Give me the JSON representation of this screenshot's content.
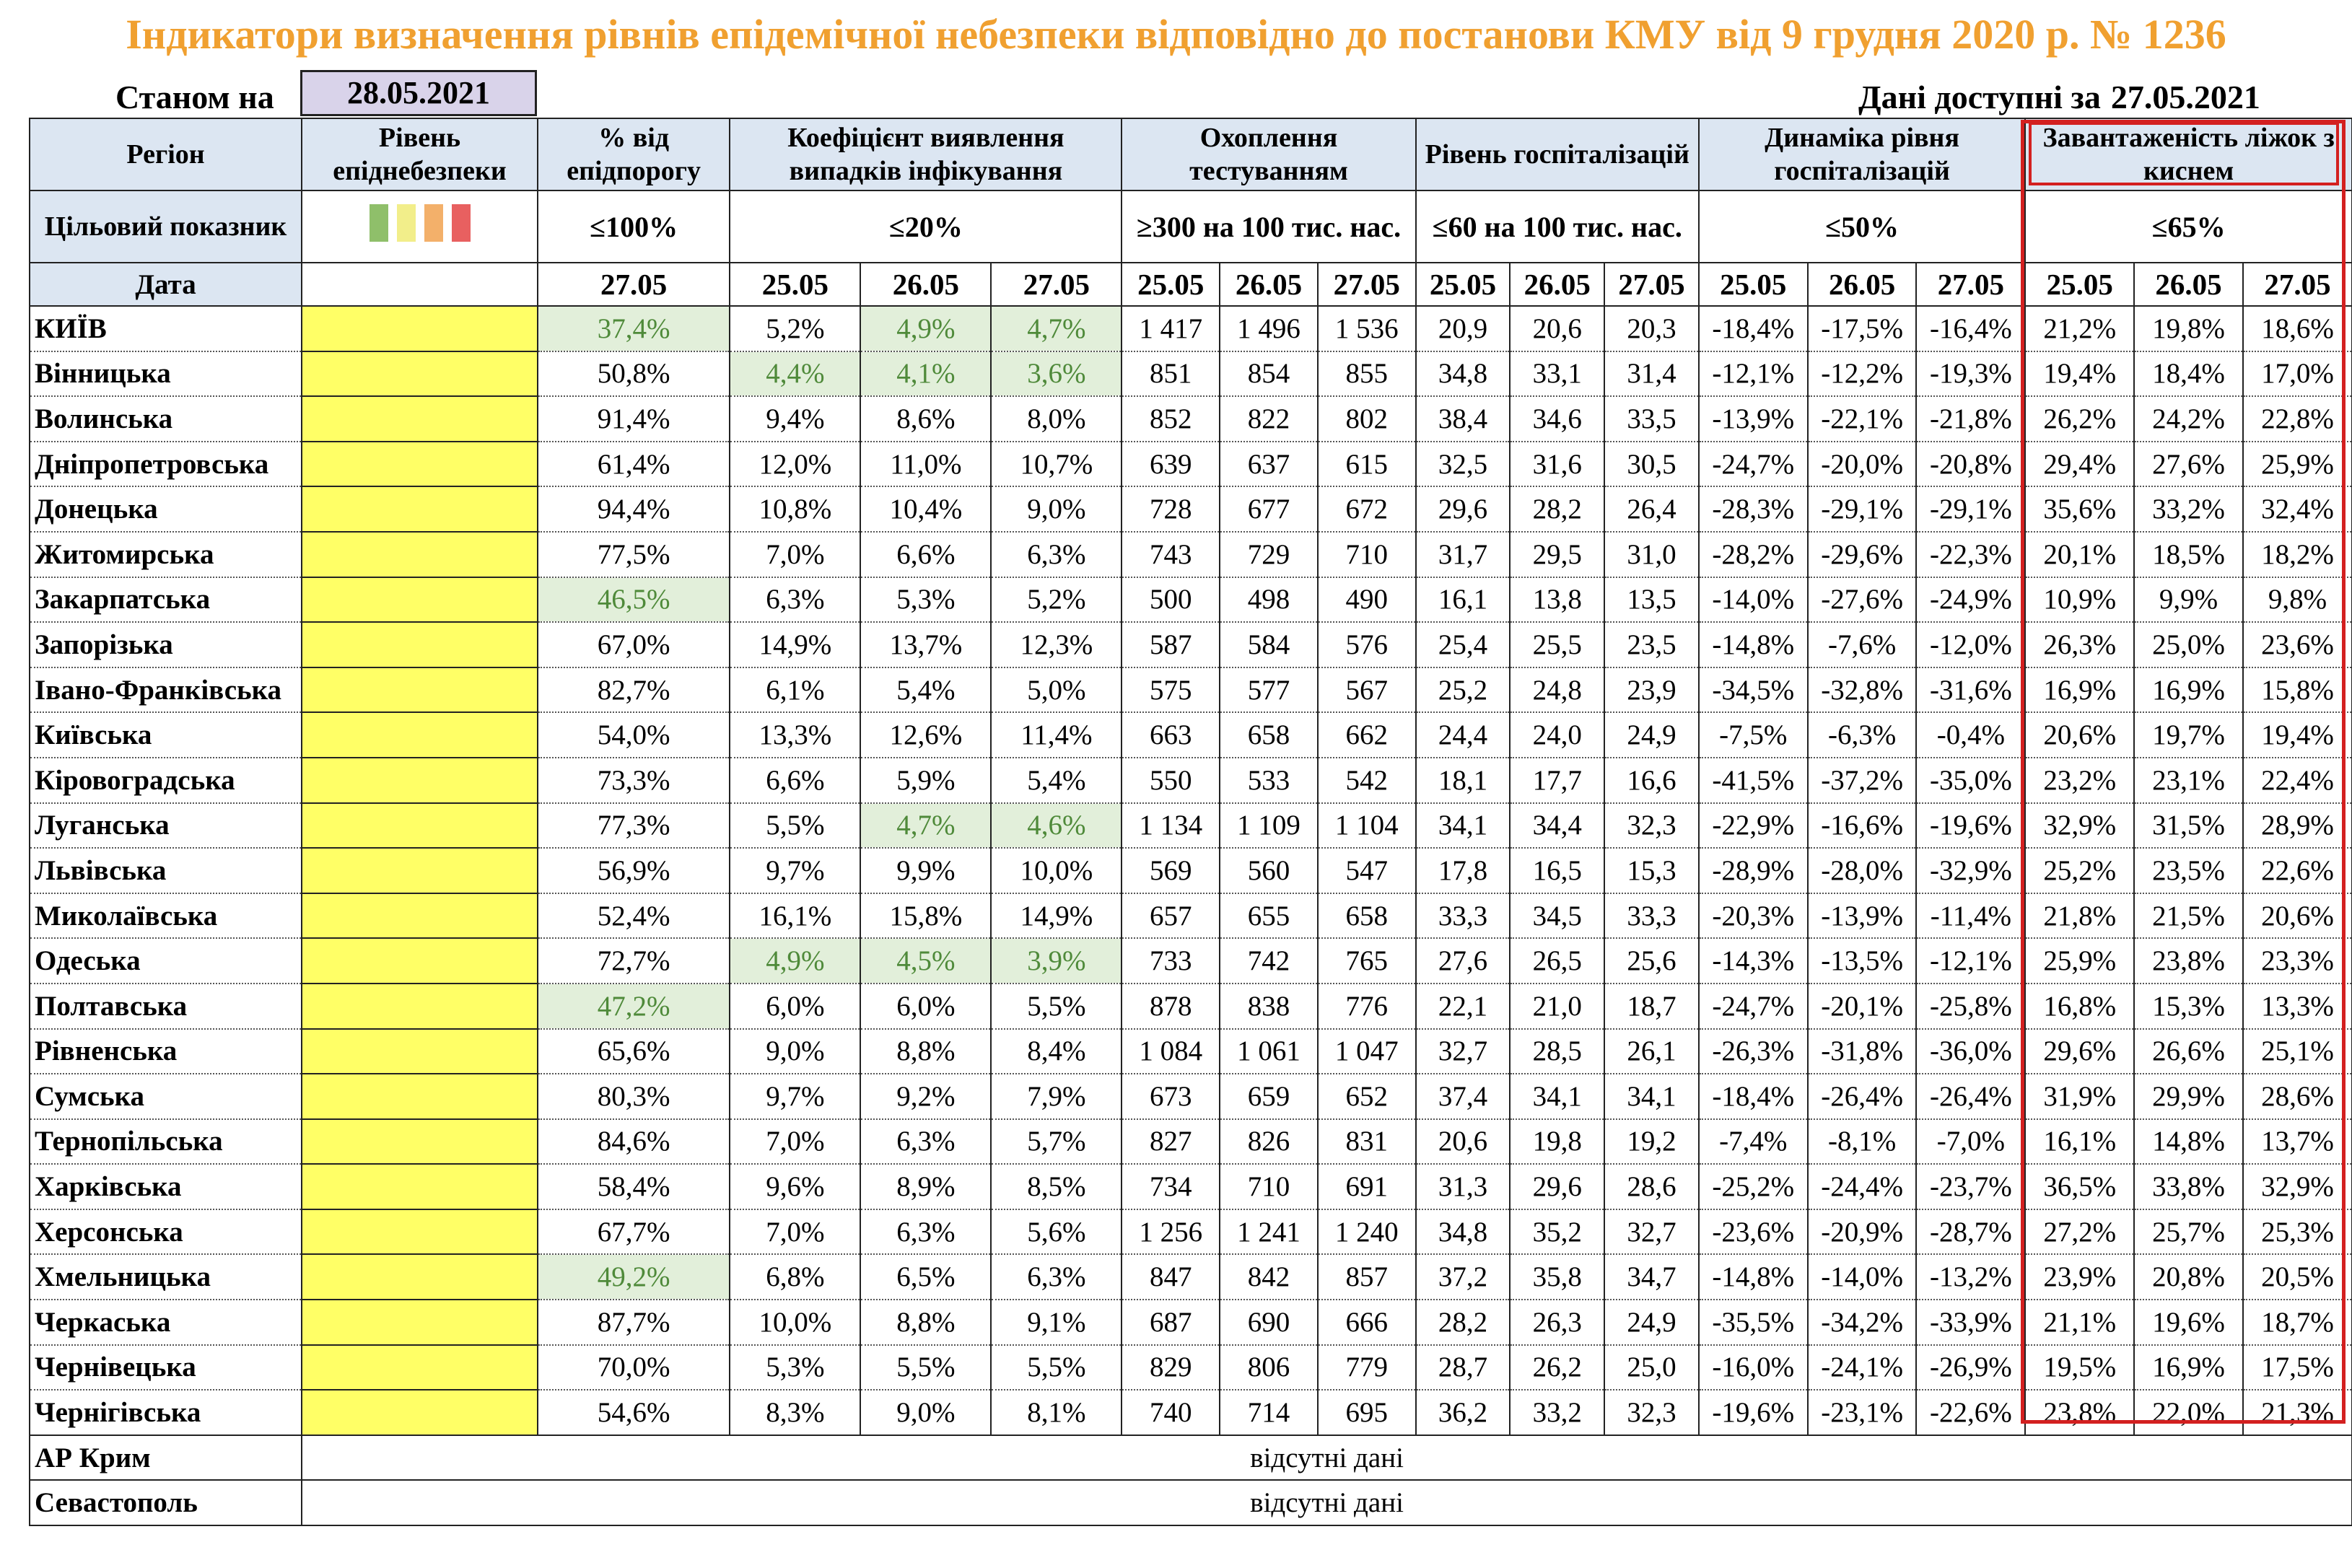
{
  "title": "Індикатори визначення рівнів епідемічної небезпеки відповідно до постанови КМУ від 9 грудня 2020 р. № 1236",
  "status": {
    "label": "Станом на",
    "date": "28.05.2021"
  },
  "available": {
    "label": "Дані доступні за",
    "date": "27.05.2021"
  },
  "colors": {
    "title": "#f0a030",
    "header_bg": "#dce6f2",
    "level_yellow": "#ffff66",
    "highlight_bg": "#e2efda",
    "highlight_text": "#4f8a3a",
    "red_frame": "#d32020"
  },
  "headers": {
    "region": "Регіон",
    "level": "Рівень епіднебезпеки",
    "pct_threshold": "% від епідпорогу",
    "detection": "Коефіцієнт виявлення випадків інфікування",
    "testing": "Охоплення тестуванням",
    "hosp_level": "Рівень госпіталізацій",
    "hosp_dynamics": "Динаміка рівня госпіталізацій",
    "oxygen_beds": "Завантаженість ліжок з киснем"
  },
  "targets": {
    "label": "Цільовий показник",
    "pct_threshold": "≤100%",
    "detection": "≤20%",
    "testing": "≥300 на 100 тис. нас.",
    "hosp_level": "≤60 на 100 тис. нас.",
    "hosp_dynamics": "≤50%",
    "oxygen_beds": "≤65%"
  },
  "level_swatches": [
    "#8fbf6a",
    "#f2ee8a",
    "#f3b06a",
    "#e86060"
  ],
  "date_row": {
    "label": "Дата",
    "pct_threshold": "27.05",
    "three": [
      "25.05",
      "26.05",
      "27.05"
    ]
  },
  "rows": [
    {
      "region": "КИЇВ",
      "pct": "37,4%",
      "det": [
        "5,2%",
        "4,9%",
        "4,7%"
      ],
      "test": [
        "1 417",
        "1 496",
        "1 536"
      ],
      "hosp": [
        "20,9",
        "20,6",
        "20,3"
      ],
      "dyn": [
        "-18,4%",
        "-17,5%",
        "-16,4%"
      ],
      "oxy": [
        "21,2%",
        "19,8%",
        "18,6%"
      ]
    },
    {
      "region": "Вінницька",
      "pct": "50,8%",
      "det": [
        "4,4%",
        "4,1%",
        "3,6%"
      ],
      "test": [
        "851",
        "854",
        "855"
      ],
      "hosp": [
        "34,8",
        "33,1",
        "31,4"
      ],
      "dyn": [
        "-12,1%",
        "-12,2%",
        "-19,3%"
      ],
      "oxy": [
        "19,4%",
        "18,4%",
        "17,0%"
      ]
    },
    {
      "region": "Волинська",
      "pct": "91,4%",
      "det": [
        "9,4%",
        "8,6%",
        "8,0%"
      ],
      "test": [
        "852",
        "822",
        "802"
      ],
      "hosp": [
        "38,4",
        "34,6",
        "33,5"
      ],
      "dyn": [
        "-13,9%",
        "-22,1%",
        "-21,8%"
      ],
      "oxy": [
        "26,2%",
        "24,2%",
        "22,8%"
      ]
    },
    {
      "region": "Дніпропетровська",
      "pct": "61,4%",
      "det": [
        "12,0%",
        "11,0%",
        "10,7%"
      ],
      "test": [
        "639",
        "637",
        "615"
      ],
      "hosp": [
        "32,5",
        "31,6",
        "30,5"
      ],
      "dyn": [
        "-24,7%",
        "-20,0%",
        "-20,8%"
      ],
      "oxy": [
        "29,4%",
        "27,6%",
        "25,9%"
      ]
    },
    {
      "region": "Донецька",
      "pct": "94,4%",
      "det": [
        "10,8%",
        "10,4%",
        "9,0%"
      ],
      "test": [
        "728",
        "677",
        "672"
      ],
      "hosp": [
        "29,6",
        "28,2",
        "26,4"
      ],
      "dyn": [
        "-28,3%",
        "-29,1%",
        "-29,1%"
      ],
      "oxy": [
        "35,6%",
        "33,2%",
        "32,4%"
      ]
    },
    {
      "region": "Житомирська",
      "pct": "77,5%",
      "det": [
        "7,0%",
        "6,6%",
        "6,3%"
      ],
      "test": [
        "743",
        "729",
        "710"
      ],
      "hosp": [
        "31,7",
        "29,5",
        "31,0"
      ],
      "dyn": [
        "-28,2%",
        "-29,6%",
        "-22,3%"
      ],
      "oxy": [
        "20,1%",
        "18,5%",
        "18,2%"
      ]
    },
    {
      "region": "Закарпатська",
      "pct": "46,5%",
      "det": [
        "6,3%",
        "5,3%",
        "5,2%"
      ],
      "test": [
        "500",
        "498",
        "490"
      ],
      "hosp": [
        "16,1",
        "13,8",
        "13,5"
      ],
      "dyn": [
        "-14,0%",
        "-27,6%",
        "-24,9%"
      ],
      "oxy": [
        "10,9%",
        "9,9%",
        "9,8%"
      ]
    },
    {
      "region": "Запорізька",
      "pct": "67,0%",
      "det": [
        "14,9%",
        "13,7%",
        "12,3%"
      ],
      "test": [
        "587",
        "584",
        "576"
      ],
      "hosp": [
        "25,4",
        "25,5",
        "23,5"
      ],
      "dyn": [
        "-14,8%",
        "-7,6%",
        "-12,0%"
      ],
      "oxy": [
        "26,3%",
        "25,0%",
        "23,6%"
      ]
    },
    {
      "region": "Івано-Франківська",
      "pct": "82,7%",
      "det": [
        "6,1%",
        "5,4%",
        "5,0%"
      ],
      "test": [
        "575",
        "577",
        "567"
      ],
      "hosp": [
        "25,2",
        "24,8",
        "23,9"
      ],
      "dyn": [
        "-34,5%",
        "-32,8%",
        "-31,6%"
      ],
      "oxy": [
        "16,9%",
        "16,9%",
        "15,8%"
      ]
    },
    {
      "region": "Київська",
      "pct": "54,0%",
      "det": [
        "13,3%",
        "12,6%",
        "11,4%"
      ],
      "test": [
        "663",
        "658",
        "662"
      ],
      "hosp": [
        "24,4",
        "24,0",
        "24,9"
      ],
      "dyn": [
        "-7,5%",
        "-6,3%",
        "-0,4%"
      ],
      "oxy": [
        "20,6%",
        "19,7%",
        "19,4%"
      ]
    },
    {
      "region": "Кіровоградська",
      "pct": "73,3%",
      "det": [
        "6,6%",
        "5,9%",
        "5,4%"
      ],
      "test": [
        "550",
        "533",
        "542"
      ],
      "hosp": [
        "18,1",
        "17,7",
        "16,6"
      ],
      "dyn": [
        "-41,5%",
        "-37,2%",
        "-35,0%"
      ],
      "oxy": [
        "23,2%",
        "23,1%",
        "22,4%"
      ]
    },
    {
      "region": "Луганська",
      "pct": "77,3%",
      "det": [
        "5,5%",
        "4,7%",
        "4,6%"
      ],
      "test": [
        "1 134",
        "1 109",
        "1 104"
      ],
      "hosp": [
        "34,1",
        "34,4",
        "32,3"
      ],
      "dyn": [
        "-22,9%",
        "-16,6%",
        "-19,6%"
      ],
      "oxy": [
        "32,9%",
        "31,5%",
        "28,9%"
      ]
    },
    {
      "region": "Львівська",
      "pct": "56,9%",
      "det": [
        "9,7%",
        "9,9%",
        "10,0%"
      ],
      "test": [
        "569",
        "560",
        "547"
      ],
      "hosp": [
        "17,8",
        "16,5",
        "15,3"
      ],
      "dyn": [
        "-28,9%",
        "-28,0%",
        "-32,9%"
      ],
      "oxy": [
        "25,2%",
        "23,5%",
        "22,6%"
      ]
    },
    {
      "region": "Миколаївська",
      "pct": "52,4%",
      "det": [
        "16,1%",
        "15,8%",
        "14,9%"
      ],
      "test": [
        "657",
        "655",
        "658"
      ],
      "hosp": [
        "33,3",
        "34,5",
        "33,3"
      ],
      "dyn": [
        "-20,3%",
        "-13,9%",
        "-11,4%"
      ],
      "oxy": [
        "21,8%",
        "21,5%",
        "20,6%"
      ]
    },
    {
      "region": "Одеська",
      "pct": "72,7%",
      "det": [
        "4,9%",
        "4,5%",
        "3,9%"
      ],
      "test": [
        "733",
        "742",
        "765"
      ],
      "hosp": [
        "27,6",
        "26,5",
        "25,6"
      ],
      "dyn": [
        "-14,3%",
        "-13,5%",
        "-12,1%"
      ],
      "oxy": [
        "25,9%",
        "23,8%",
        "23,3%"
      ]
    },
    {
      "region": "Полтавська",
      "pct": "47,2%",
      "det": [
        "6,0%",
        "6,0%",
        "5,5%"
      ],
      "test": [
        "878",
        "838",
        "776"
      ],
      "hosp": [
        "22,1",
        "21,0",
        "18,7"
      ],
      "dyn": [
        "-24,7%",
        "-20,1%",
        "-25,8%"
      ],
      "oxy": [
        "16,8%",
        "15,3%",
        "13,3%"
      ]
    },
    {
      "region": "Рівненська",
      "pct": "65,6%",
      "det": [
        "9,0%",
        "8,8%",
        "8,4%"
      ],
      "test": [
        "1 084",
        "1 061",
        "1 047"
      ],
      "hosp": [
        "32,7",
        "28,5",
        "26,1"
      ],
      "dyn": [
        "-26,3%",
        "-31,8%",
        "-36,0%"
      ],
      "oxy": [
        "29,6%",
        "26,6%",
        "25,1%"
      ]
    },
    {
      "region": "Сумська",
      "pct": "80,3%",
      "det": [
        "9,7%",
        "9,2%",
        "7,9%"
      ],
      "test": [
        "673",
        "659",
        "652"
      ],
      "hosp": [
        "37,4",
        "34,1",
        "34,1"
      ],
      "dyn": [
        "-18,4%",
        "-26,4%",
        "-26,4%"
      ],
      "oxy": [
        "31,9%",
        "29,9%",
        "28,6%"
      ]
    },
    {
      "region": "Тернопільська",
      "pct": "84,6%",
      "det": [
        "7,0%",
        "6,3%",
        "5,7%"
      ],
      "test": [
        "827",
        "826",
        "831"
      ],
      "hosp": [
        "20,6",
        "19,8",
        "19,2"
      ],
      "dyn": [
        "-7,4%",
        "-8,1%",
        "-7,0%"
      ],
      "oxy": [
        "16,1%",
        "14,8%",
        "13,7%"
      ]
    },
    {
      "region": "Харківська",
      "pct": "58,4%",
      "det": [
        "9,6%",
        "8,9%",
        "8,5%"
      ],
      "test": [
        "734",
        "710",
        "691"
      ],
      "hosp": [
        "31,3",
        "29,6",
        "28,6"
      ],
      "dyn": [
        "-25,2%",
        "-24,4%",
        "-23,7%"
      ],
      "oxy": [
        "36,5%",
        "33,8%",
        "32,9%"
      ]
    },
    {
      "region": "Херсонська",
      "pct": "67,7%",
      "det": [
        "7,0%",
        "6,3%",
        "5,6%"
      ],
      "test": [
        "1 256",
        "1 241",
        "1 240"
      ],
      "hosp": [
        "34,8",
        "35,2",
        "32,7"
      ],
      "dyn": [
        "-23,6%",
        "-20,9%",
        "-28,7%"
      ],
      "oxy": [
        "27,2%",
        "25,7%",
        "25,3%"
      ]
    },
    {
      "region": "Хмельницька",
      "pct": "49,2%",
      "det": [
        "6,8%",
        "6,5%",
        "6,3%"
      ],
      "test": [
        "847",
        "842",
        "857"
      ],
      "hosp": [
        "37,2",
        "35,8",
        "34,7"
      ],
      "dyn": [
        "-14,8%",
        "-14,0%",
        "-13,2%"
      ],
      "oxy": [
        "23,9%",
        "20,8%",
        "20,5%"
      ]
    },
    {
      "region": "Черкаська",
      "pct": "87,7%",
      "det": [
        "10,0%",
        "8,8%",
        "9,1%"
      ],
      "test": [
        "687",
        "690",
        "666"
      ],
      "hosp": [
        "28,2",
        "26,3",
        "24,9"
      ],
      "dyn": [
        "-35,5%",
        "-34,2%",
        "-33,9%"
      ],
      "oxy": [
        "21,1%",
        "19,6%",
        "18,7%"
      ]
    },
    {
      "region": "Чернівецька",
      "pct": "70,0%",
      "det": [
        "5,3%",
        "5,5%",
        "5,5%"
      ],
      "test": [
        "829",
        "806",
        "779"
      ],
      "hosp": [
        "28,7",
        "26,2",
        "25,0"
      ],
      "dyn": [
        "-16,0%",
        "-24,1%",
        "-26,9%"
      ],
      "oxy": [
        "19,5%",
        "16,9%",
        "17,5%"
      ]
    },
    {
      "region": "Чернігівська",
      "pct": "54,6%",
      "det": [
        "8,3%",
        "9,0%",
        "8,1%"
      ],
      "test": [
        "740",
        "714",
        "695"
      ],
      "hosp": [
        "36,2",
        "33,2",
        "32,3"
      ],
      "dyn": [
        "-19,6%",
        "-23,1%",
        "-22,6%"
      ],
      "oxy": [
        "23,8%",
        "22,0%",
        "21,3%"
      ]
    }
  ],
  "highlights": {
    "pct": [
      "КИЇВ",
      "Закарпатська",
      "Полтавська",
      "Хмельницька"
    ],
    "det": {
      "КИЇВ": [
        1,
        2
      ],
      "Вінницька": [
        0,
        1,
        2
      ],
      "Луганська": [
        1,
        2
      ],
      "Одеська": [
        0,
        1,
        2
      ]
    }
  },
  "footer_rows": [
    {
      "region": "АР Крим",
      "note": "відсутні дані"
    },
    {
      "region": "Севастополь",
      "note": "відсутні дані"
    }
  ]
}
